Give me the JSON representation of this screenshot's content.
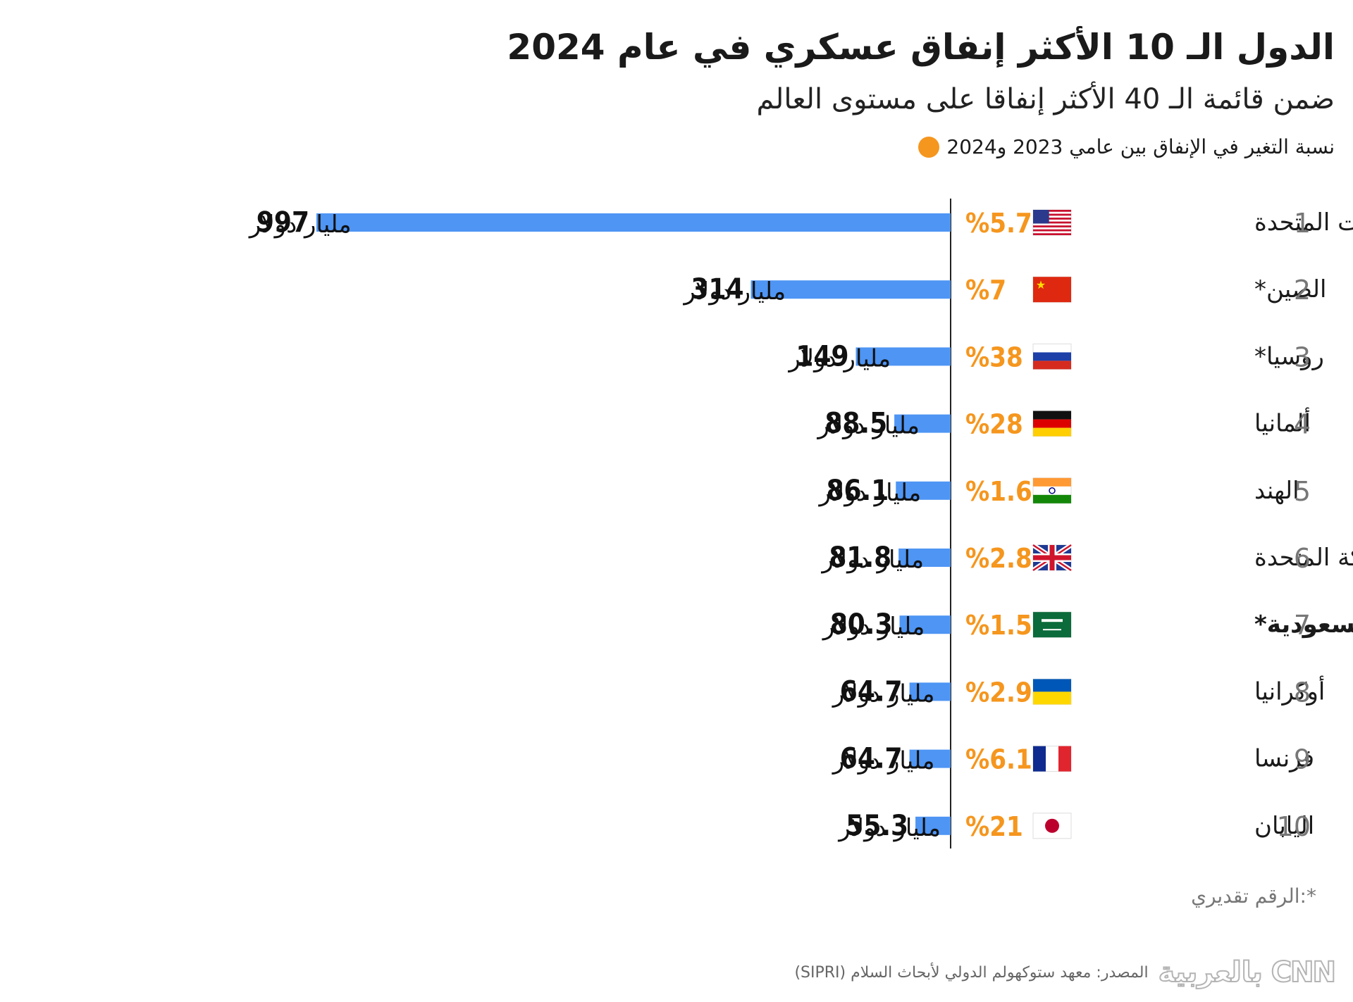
{
  "header": {
    "title": "الدول الـ 10 الأكثر إنفاق عسكري في عام 2024",
    "subtitle": "ضمن قائمة الـ 40 الأكثر إنفاقا على مستوى العالم",
    "legend_text": "نسبة التغير في الإنفاق بين عامي 2023 و2024"
  },
  "colors": {
    "bar": "#4e95f4",
    "change": "#f5961e",
    "rank": "#777777",
    "axis": "#222222"
  },
  "chart_data": {
    "type": "bar",
    "orientation": "horizontal",
    "unit": "مليار دولار",
    "ranks": [
      "1",
      "2",
      "3",
      "4",
      "5",
      "6",
      "7",
      "8",
      "9",
      "10"
    ],
    "categories": [
      "الولايات المتحدة",
      "الصين*",
      "روسيا*",
      "ألمانيا",
      "الهند",
      "المملكة المتحدة",
      "السعودية*",
      "أوكرانيا",
      "فرنسا",
      "اليابان"
    ],
    "highlight_index": 6,
    "flags": [
      "flag-us-icon",
      "flag-cn-icon",
      "flag-ru-icon",
      "flag-de-icon",
      "flag-in-icon",
      "flag-gb-icon",
      "flag-sa-icon",
      "flag-ua-icon",
      "flag-fr-icon",
      "flag-jp-icon"
    ],
    "values": [
      997,
      314,
      149,
      88.5,
      86.1,
      81.8,
      80.3,
      64.7,
      64.7,
      55.3
    ],
    "value_labels": [
      "997",
      "314",
      "149",
      "88.5",
      "86.1",
      "81.8",
      "80.3",
      "64.7",
      "64.7",
      "55.3"
    ],
    "change_labels": [
      "%5.7",
      "%7",
      "%38",
      "%28",
      "%1.6",
      "%2.8",
      "%1.5",
      "%2.9",
      "%6.1",
      "%21"
    ]
  },
  "footer": {
    "note": "*:الرقم تقديري",
    "source": "المصدر: معهد ستوكهولم الدولي لأبحاث السلام (SIPRI)",
    "logo_text": "CNN بالعربية"
  }
}
